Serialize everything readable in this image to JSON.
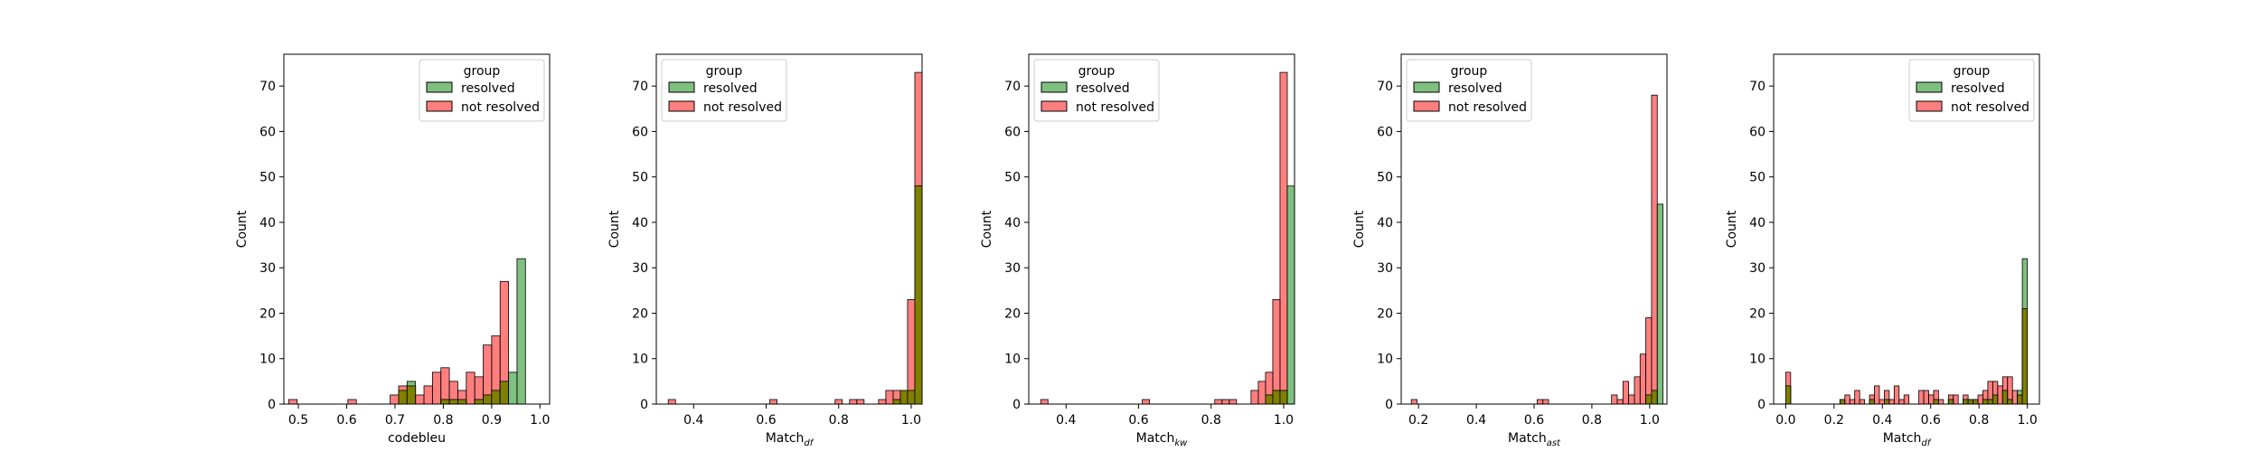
{
  "colors": {
    "resolved": "#008000",
    "not_resolved": "#ff0000",
    "overlap": "#808000",
    "edge": "#000000"
  },
  "chart_data": [
    {
      "type": "histogram",
      "xlabel": "codebleu",
      "xlabel_sub": "",
      "ylabel": "Count",
      "xlim": [
        0.47,
        1.02
      ],
      "ylim": [
        0,
        77
      ],
      "xticks": [
        0.5,
        0.6,
        0.7,
        0.8,
        0.9,
        1.0
      ],
      "xtick_labels": [
        "0.5",
        "0.6",
        "0.7",
        "0.8",
        "0.9",
        "1.0"
      ],
      "yticks": [
        0,
        10,
        20,
        30,
        40,
        50,
        60,
        70
      ],
      "legend": {
        "title": "group",
        "placement": "upper right",
        "entries": [
          "resolved",
          "not resolved"
        ]
      },
      "bin_start": 0.48,
      "bin_width": 0.0175,
      "series": [
        {
          "name": "resolved",
          "color_key": "resolved",
          "counts": [
            0,
            0,
            0,
            0,
            0,
            0,
            0,
            0,
            0,
            0,
            0,
            0,
            0,
            3,
            5,
            0,
            0,
            0,
            1,
            1,
            1,
            0,
            1,
            2,
            3,
            5,
            7,
            32
          ]
        },
        {
          "name": "not resolved",
          "color_key": "not_resolved",
          "counts": [
            1,
            0,
            0,
            0,
            0,
            0,
            0,
            1,
            0,
            0,
            0,
            0,
            2,
            4,
            4,
            2,
            4,
            7,
            8,
            5,
            3,
            7,
            6,
            13,
            15,
            27,
            0,
            0
          ]
        }
      ]
    },
    {
      "type": "histogram",
      "xlabel": "Match",
      "xlabel_sub": "df",
      "ylabel": "Count",
      "xlim": [
        0.297,
        1.03
      ],
      "ylim": [
        0,
        77
      ],
      "xticks": [
        0.4,
        0.6,
        0.8,
        1.0
      ],
      "xtick_labels": [
        "0.4",
        "0.6",
        "0.8",
        "1.0"
      ],
      "yticks": [
        0,
        10,
        20,
        30,
        40,
        50,
        60,
        70
      ],
      "legend": {
        "title": "group",
        "placement": "upper left",
        "entries": [
          "resolved",
          "not resolved"
        ]
      },
      "bin_start": 0.33,
      "bin_width": 0.02,
      "series": [
        {
          "name": "resolved",
          "color_key": "resolved",
          "counts": [
            0,
            0,
            0,
            0,
            0,
            0,
            0,
            0,
            0,
            0,
            0,
            0,
            0,
            0,
            0,
            0,
            0,
            0,
            0,
            0,
            0,
            0,
            0,
            0,
            0,
            0,
            0,
            0,
            0,
            0,
            0,
            1,
            3,
            3,
            48
          ]
        },
        {
          "name": "not resolved",
          "color_key": "not_resolved",
          "counts": [
            1,
            0,
            0,
            0,
            0,
            0,
            0,
            0,
            0,
            0,
            0,
            0,
            0,
            0,
            1,
            0,
            0,
            0,
            0,
            0,
            0,
            0,
            0,
            1,
            0,
            1,
            1,
            0,
            0,
            1,
            3,
            3,
            3,
            23,
            73
          ]
        }
      ]
    },
    {
      "type": "histogram",
      "xlabel": "Match",
      "xlabel_sub": "kw",
      "ylabel": "Count",
      "xlim": [
        0.297,
        1.03
      ],
      "ylim": [
        0,
        77
      ],
      "xticks": [
        0.4,
        0.6,
        0.8,
        1.0
      ],
      "xtick_labels": [
        "0.4",
        "0.6",
        "0.8",
        "1.0"
      ],
      "yticks": [
        0,
        10,
        20,
        30,
        40,
        50,
        60,
        70
      ],
      "legend": {
        "title": "group",
        "placement": "upper left",
        "entries": [
          "resolved",
          "not resolved"
        ]
      },
      "bin_start": 0.33,
      "bin_width": 0.02,
      "series": [
        {
          "name": "resolved",
          "color_key": "resolved",
          "counts": [
            0,
            0,
            0,
            0,
            0,
            0,
            0,
            0,
            0,
            0,
            0,
            0,
            0,
            0,
            0,
            0,
            0,
            0,
            0,
            0,
            0,
            0,
            0,
            0,
            0,
            0,
            0,
            0,
            0,
            0,
            0,
            2,
            3,
            3,
            48
          ]
        },
        {
          "name": "not resolved",
          "color_key": "not_resolved",
          "counts": [
            1,
            0,
            0,
            0,
            0,
            0,
            0,
            0,
            0,
            0,
            0,
            0,
            0,
            0,
            1,
            0,
            0,
            0,
            0,
            0,
            0,
            0,
            0,
            0,
            1,
            1,
            1,
            0,
            0,
            3,
            5,
            7,
            23,
            73,
            0
          ]
        }
      ]
    },
    {
      "type": "histogram",
      "xlabel": "Match",
      "xlabel_sub": "ast",
      "ylabel": "Count",
      "xlim": [
        0.14,
        1.06
      ],
      "ylim": [
        0,
        77
      ],
      "xticks": [
        0.2,
        0.4,
        0.6,
        0.8,
        1.0
      ],
      "xtick_labels": [
        "0.2",
        "0.4",
        "0.6",
        "0.8",
        "1.0"
      ],
      "yticks": [
        0,
        10,
        20,
        30,
        40,
        50,
        60,
        70
      ],
      "legend": {
        "title": "group",
        "placement": "upper left",
        "entries": [
          "resolved",
          "not resolved"
        ]
      },
      "bin_start": 0.175,
      "bin_width": 0.0198,
      "series": [
        {
          "name": "resolved",
          "color_key": "resolved",
          "counts": [
            0,
            0,
            0,
            0,
            0,
            0,
            0,
            0,
            0,
            0,
            0,
            0,
            0,
            0,
            0,
            0,
            0,
            0,
            0,
            0,
            0,
            0,
            0,
            0,
            0,
            0,
            0,
            0,
            0,
            0,
            0,
            0,
            0,
            0,
            0,
            0,
            0,
            0,
            0,
            0,
            0,
            2,
            3,
            44
          ]
        },
        {
          "name": "not resolved",
          "color_key": "not_resolved",
          "counts": [
            1,
            0,
            0,
            0,
            0,
            0,
            0,
            0,
            0,
            0,
            0,
            0,
            0,
            0,
            0,
            0,
            0,
            0,
            0,
            0,
            0,
            0,
            1,
            1,
            0,
            0,
            0,
            0,
            0,
            0,
            0,
            0,
            0,
            0,
            0,
            2,
            1,
            5,
            2,
            6,
            11,
            19,
            68,
            0
          ]
        }
      ]
    },
    {
      "type": "histogram",
      "xlabel": "Match",
      "xlabel_sub": "df",
      "ylabel": "Count",
      "xlim": [
        -0.05,
        1.05
      ],
      "ylim": [
        0,
        77
      ],
      "xticks": [
        0.0,
        0.2,
        0.4,
        0.6,
        0.8,
        1.0
      ],
      "xtick_labels": [
        "0.0",
        "0.2",
        "0.4",
        "0.6",
        "0.8",
        "1.0"
      ],
      "yticks": [
        0,
        10,
        20,
        30,
        40,
        50,
        60,
        70
      ],
      "legend": {
        "title": "group",
        "placement": "upper right",
        "entries": [
          "resolved",
          "not resolved"
        ]
      },
      "bin_start": 0.0,
      "bin_width": 0.0204,
      "series": [
        {
          "name": "resolved",
          "color_key": "resolved",
          "counts": [
            4,
            0,
            0,
            0,
            0,
            0,
            0,
            0,
            0,
            0,
            0,
            1,
            0,
            0,
            0,
            0,
            0,
            1,
            0,
            0,
            1,
            0,
            0,
            0,
            0,
            0,
            0,
            0,
            0,
            0,
            1,
            0,
            0,
            1,
            0,
            0,
            1,
            1,
            1,
            0,
            1,
            1,
            2,
            0,
            3,
            1,
            0,
            3,
            32
          ]
        },
        {
          "name": "not resolved",
          "color_key": "not_resolved",
          "counts": [
            7,
            0,
            0,
            0,
            0,
            0,
            0,
            0,
            0,
            0,
            0,
            1,
            2,
            1,
            3,
            1,
            0,
            2,
            4,
            1,
            3,
            1,
            4,
            1,
            2,
            0,
            0,
            3,
            3,
            2,
            3,
            1,
            0,
            2,
            2,
            0,
            2,
            1,
            1,
            2,
            3,
            5,
            5,
            4,
            6,
            6,
            3,
            2,
            21
          ]
        }
      ]
    }
  ]
}
